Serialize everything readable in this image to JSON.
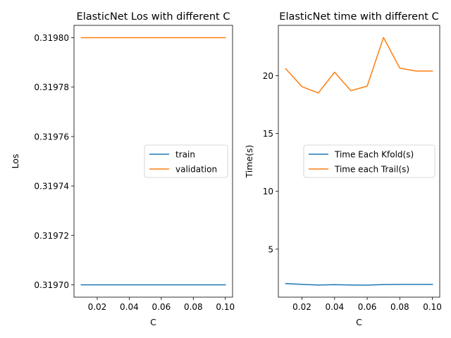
{
  "chart_data": [
    {
      "type": "line",
      "title": "ElasticNet Los with different C",
      "xlabel": "C",
      "ylabel": "Los",
      "x": [
        0.01,
        0.02,
        0.03,
        0.04,
        0.05,
        0.06,
        0.07,
        0.08,
        0.09,
        0.1
      ],
      "xticks": [
        "0.02",
        "0.04",
        "0.06",
        "0.08",
        "0.10"
      ],
      "xtick_values": [
        0.02,
        0.04,
        0.06,
        0.08,
        0.1
      ],
      "yticks": [
        "0.31970",
        "0.31972",
        "0.31974",
        "0.31976",
        "0.31978",
        "0.31980"
      ],
      "ytick_values": [
        0.3197,
        0.31972,
        0.31974,
        0.31976,
        0.31978,
        0.3198
      ],
      "xlim": [
        0.0055,
        0.1045
      ],
      "ylim": [
        0.319695,
        0.319805
      ],
      "legend_position": "center-right",
      "series": [
        {
          "name": "train",
          "color": "#1f77b4",
          "values": [
            0.3197,
            0.3197,
            0.3197,
            0.3197,
            0.3197,
            0.3197,
            0.3197,
            0.3197,
            0.3197,
            0.3197
          ]
        },
        {
          "name": "validation",
          "color": "#ff7f0e",
          "values": [
            0.3198,
            0.3198,
            0.3198,
            0.3198,
            0.3198,
            0.3198,
            0.3198,
            0.3198,
            0.3198,
            0.3198
          ]
        }
      ]
    },
    {
      "type": "line",
      "title": "ElasticNet time with different C",
      "xlabel": "C",
      "ylabel": "Time(s)",
      "x": [
        0.01,
        0.02,
        0.03,
        0.04,
        0.05,
        0.06,
        0.07,
        0.08,
        0.09,
        0.1
      ],
      "xticks": [
        "0.02",
        "0.04",
        "0.06",
        "0.08",
        "0.10"
      ],
      "xtick_values": [
        0.02,
        0.04,
        0.06,
        0.08,
        0.1
      ],
      "yticks": [
        "5",
        "10",
        "15",
        "20"
      ],
      "ytick_values": [
        5,
        10,
        15,
        20
      ],
      "xlim": [
        0.0055,
        0.1045
      ],
      "ylim": [
        0.85,
        24.35
      ],
      "legend_position": "center-right",
      "series": [
        {
          "name": "Time Each Kfold(s)",
          "color": "#1f77b4",
          "values": [
            2.03,
            1.95,
            1.9,
            1.93,
            1.9,
            1.89,
            1.94,
            1.95,
            1.95,
            1.95
          ]
        },
        {
          "name": "Time each Trail(s)",
          "color": "#ff7f0e",
          "values": [
            20.6,
            19.05,
            18.5,
            20.3,
            18.7,
            19.1,
            23.3,
            20.65,
            20.4,
            20.4
          ]
        }
      ]
    }
  ]
}
